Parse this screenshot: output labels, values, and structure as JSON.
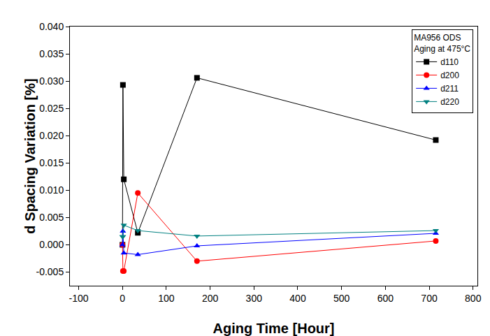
{
  "chart_data": {
    "type": "line",
    "x_label": "Aging Time [Hour]",
    "y_label": "d Spacing Variation [%]",
    "annotations": [
      "MA956 ODS",
      "Aging at 475°C"
    ],
    "legend": "top right",
    "grid": false,
    "xlim": [
      -120,
      810
    ],
    "xticks": [
      -100,
      0,
      100,
      200,
      300,
      400,
      500,
      600,
      700,
      800
    ],
    "ylim": [
      -0.0075,
      0.04
    ],
    "yticks": [
      {
        "value": -0.005,
        "label": "-0.005"
      },
      {
        "value": 0,
        "label": "0.000"
      },
      {
        "value": 0.005,
        "label": "0.005"
      },
      {
        "value": 0.01,
        "label": "0.010"
      },
      {
        "value": 0.015,
        "label": "0.015"
      },
      {
        "value": 0.02,
        "label": "0.020"
      },
      {
        "value": 0.025,
        "label": "0.025"
      },
      {
        "value": 0.03,
        "label": "0.030"
      },
      {
        "value": 0.035,
        "label": "0.035"
      },
      {
        "value": 0.04,
        "label": "0.040"
      }
    ],
    "x": [
      0,
      1,
      3,
      35,
      170,
      715
    ],
    "series": [
      {
        "name": "d110",
        "color": "#000000",
        "marker": "square",
        "values": [
          0,
          0.0293,
          0.012,
          0.0022,
          0.0306,
          0.0192
        ]
      },
      {
        "name": "d200",
        "color": "#ff0000",
        "marker": "circle",
        "values": [
          0,
          -0.0048,
          -0.0048,
          0.0095,
          -0.003,
          0.0007
        ]
      },
      {
        "name": "d211",
        "color": "#0000ff",
        "marker": "triangle-up",
        "values": [
          0,
          0.0025,
          -0.0015,
          -0.0018,
          -0.0002,
          0.0021
        ]
      },
      {
        "name": "d220",
        "color": "#008080",
        "marker": "triangle-down",
        "values": [
          0.0015,
          0.0015,
          0.0036,
          0.0026,
          0.0016,
          0.0026
        ]
      }
    ]
  }
}
